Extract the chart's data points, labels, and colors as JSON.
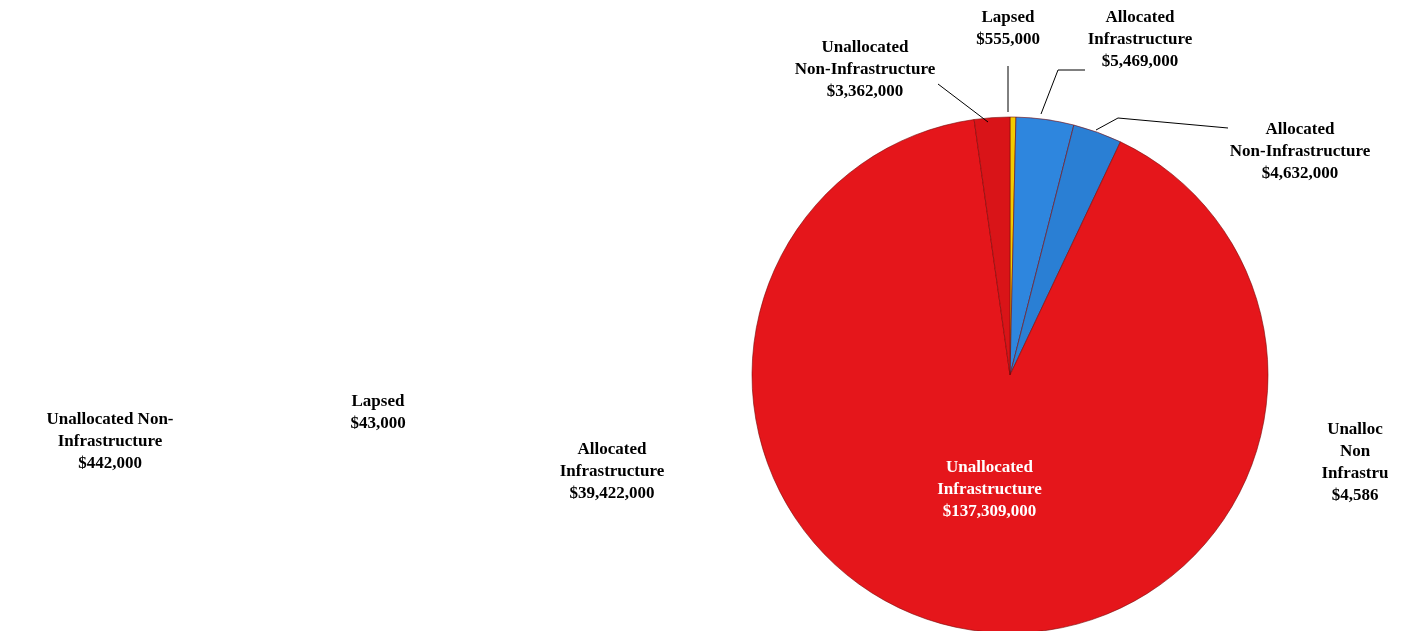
{
  "chart_data": [
    {
      "type": "pie",
      "categories": [
        "Lapsed",
        "Allocated Infrastructure",
        "Allocated Non-Infrastructure",
        "Unallocated Infrastructure",
        "Unallocated Non-Infrastructure"
      ],
      "values": [
        555000,
        5469000,
        4632000,
        137309000,
        3362000
      ],
      "colors": [
        "#f2cc00",
        "#2e86de",
        "#2a7fd4",
        "#e5161b",
        "#d91418"
      ],
      "value_labels": [
        "$555,000",
        "$5,469,000",
        "$4,632,000",
        "$137,309,000",
        "$3,362,000"
      ]
    },
    {
      "type": "other",
      "annotations": [
        "Unallocated Non-\nInfrastructure\n$442,000",
        "Lapsed\n$43,000",
        "Allocated\nInfrastructure\n$39,422,000"
      ]
    },
    {
      "type": "other",
      "annotations": [
        "Unalloc\nNon\nInfrastru\n$4,586"
      ]
    }
  ]
}
